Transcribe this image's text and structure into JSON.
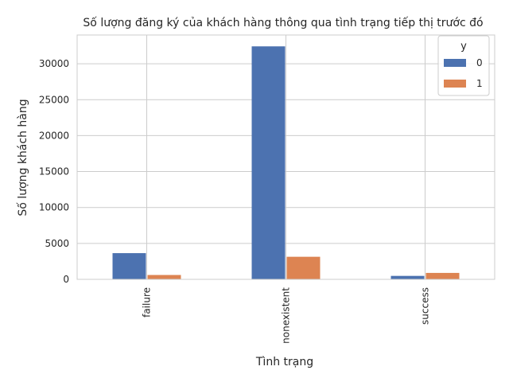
{
  "chart_data": {
    "type": "bar",
    "title": "Số lượng đăng ký của khách hàng thông qua tình trạng tiếp thị trước đó",
    "xlabel": "Tình trạng",
    "ylabel": "Số lượng khách hàng",
    "categories": [
      "failure",
      "nonexistent",
      "success"
    ],
    "series": [
      {
        "name": "0",
        "values": [
          3647,
          32422,
          479
        ],
        "color": "#4c72b0"
      },
      {
        "name": "1",
        "values": [
          605,
          3141,
          894
        ],
        "color": "#dd8452"
      }
    ],
    "ylim": [
      0,
      34000
    ],
    "yticks": [
      0,
      5000,
      10000,
      15000,
      20000,
      25000,
      30000
    ],
    "legend": {
      "title": "y",
      "position": "top-right"
    },
    "grid": true
  }
}
